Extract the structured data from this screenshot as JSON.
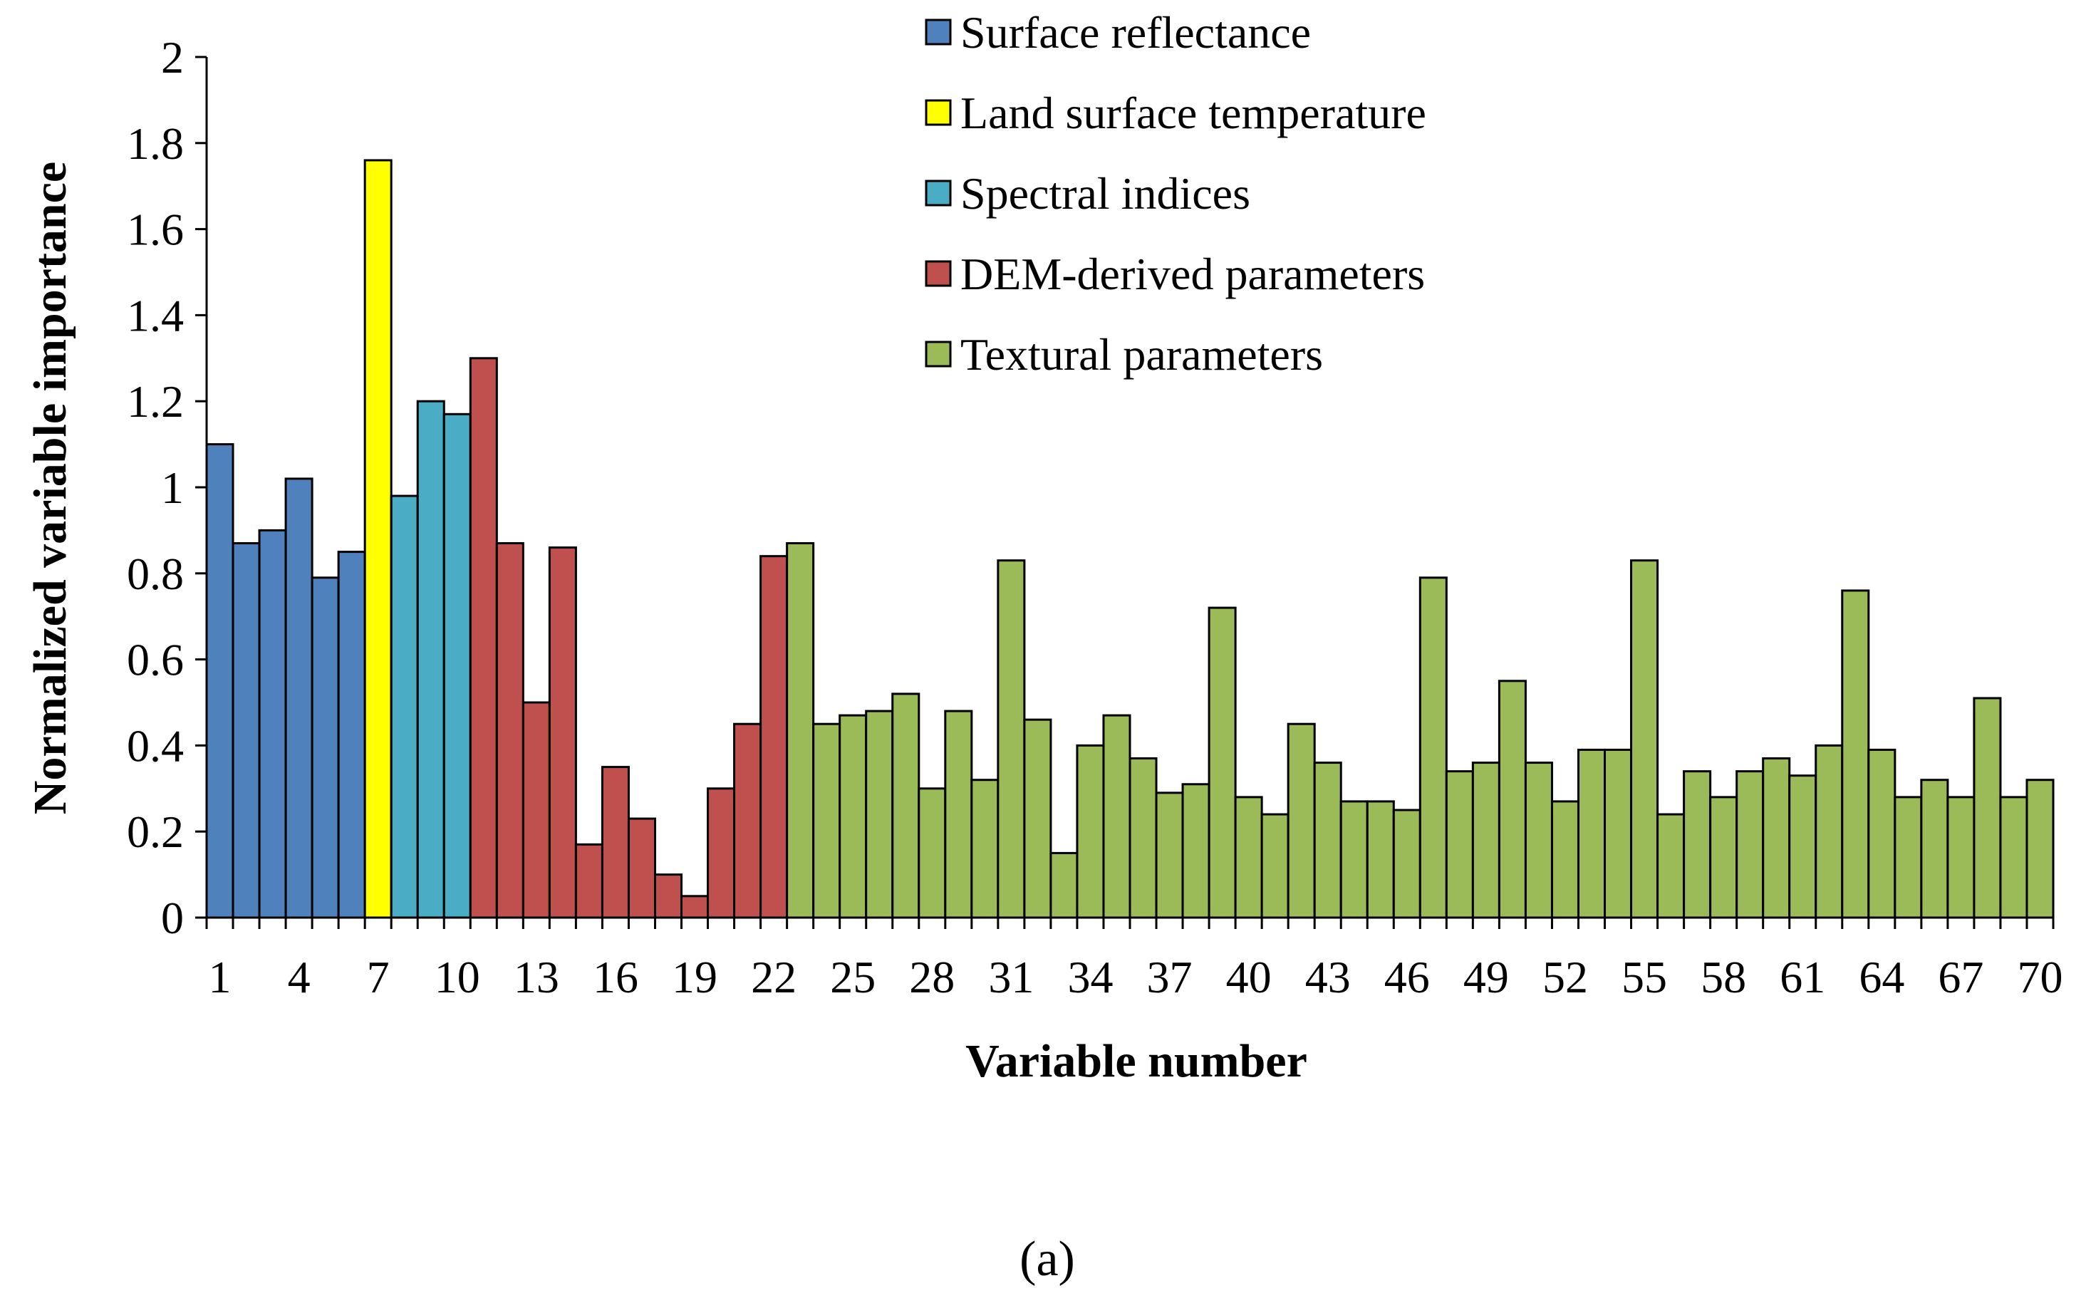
{
  "chart_data": {
    "type": "bar",
    "xlabel": "Variable number",
    "ylabel": "Normalized variable importance",
    "ylim": [
      0,
      2
    ],
    "yticks": [
      "0",
      "0.2",
      "0.4",
      "0.6",
      "0.8",
      "1",
      "1.2",
      "1.4",
      "1.6",
      "1.8",
      "2"
    ],
    "xticks": [
      "1",
      "4",
      "7",
      "10",
      "13",
      "16",
      "19",
      "22",
      "25",
      "28",
      "31",
      "34",
      "37",
      "40",
      "43",
      "46",
      "49",
      "52",
      "55",
      "58",
      "61",
      "64",
      "67",
      "70"
    ],
    "panel_label": "(a)",
    "groups": [
      {
        "name": "Surface reflectance",
        "color": "#4f81bd",
        "from": 1,
        "to": 6
      },
      {
        "name": "Land surface temperature",
        "color": "#ffff00",
        "from": 7,
        "to": 7
      },
      {
        "name": "Spectral indices",
        "color": "#4bacc6",
        "from": 8,
        "to": 10
      },
      {
        "name": "DEM-derived parameters",
        "color": "#c0504d",
        "from": 11,
        "to": 22
      },
      {
        "name": "Textural parameters",
        "color": "#9bbb59",
        "from": 23,
        "to": 70
      }
    ],
    "values": [
      1.1,
      0.87,
      0.9,
      1.02,
      0.79,
      0.85,
      1.76,
      0.98,
      1.2,
      1.17,
      1.3,
      0.87,
      0.5,
      0.86,
      0.17,
      0.35,
      0.23,
      0.1,
      0.05,
      0.3,
      0.45,
      0.84,
      0.87,
      0.45,
      0.47,
      0.48,
      0.52,
      0.3,
      0.48,
      0.32,
      0.83,
      0.46,
      0.15,
      0.4,
      0.47,
      0.37,
      0.29,
      0.31,
      0.72,
      0.28,
      0.24,
      0.45,
      0.36,
      0.27,
      0.27,
      0.25,
      0.79,
      0.34,
      0.36,
      0.55,
      0.36,
      0.27,
      0.39,
      0.39,
      0.83,
      0.24,
      0.34,
      0.28,
      0.34,
      0.37,
      0.33,
      0.4,
      0.76,
      0.39,
      0.28,
      0.32,
      0.28,
      0.51,
      0.28,
      0.32
    ]
  }
}
